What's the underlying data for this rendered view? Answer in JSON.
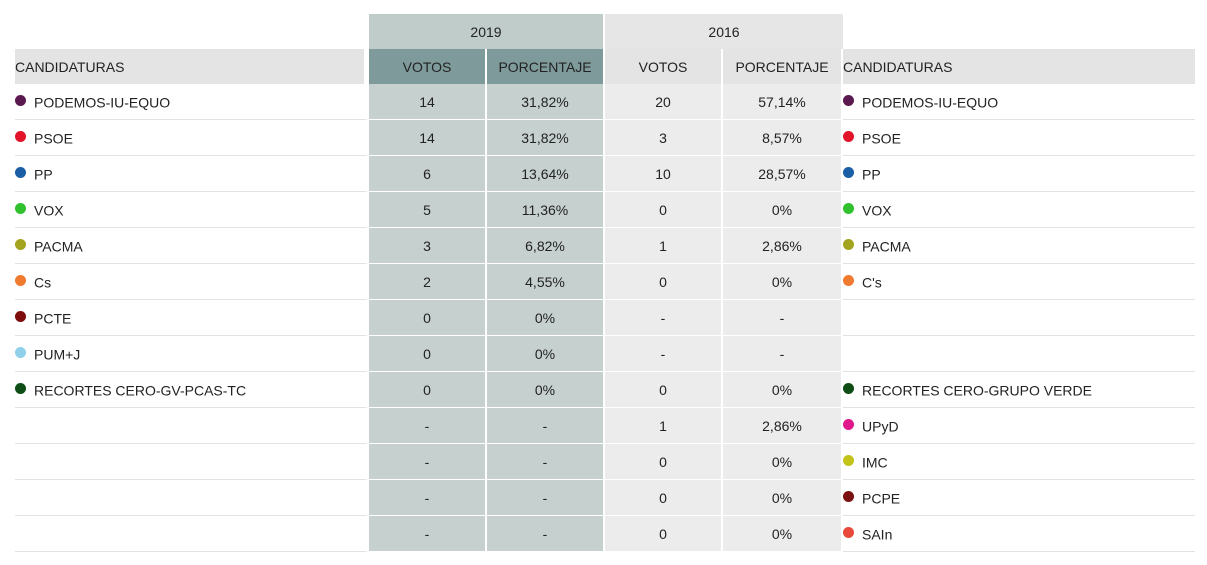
{
  "years": {
    "y2019": "2019",
    "y2016": "2016"
  },
  "headers": {
    "candidaturas": "CANDIDATURAS",
    "votos": "VOTOS",
    "porcentaje": "PORCENTAJE"
  },
  "rows": [
    {
      "left": {
        "name": "PODEMOS-IU-EQUO",
        "color": "#5b1a4f"
      },
      "v2019": {
        "votos": "14",
        "pct": "31,82%"
      },
      "v2016": {
        "votos": "20",
        "pct": "57,14%"
      },
      "right": {
        "name": "PODEMOS-IU-EQUO",
        "color": "#5b1a4f"
      }
    },
    {
      "left": {
        "name": "PSOE",
        "color": "#e3132a"
      },
      "v2019": {
        "votos": "14",
        "pct": "31,82%"
      },
      "v2016": {
        "votos": "3",
        "pct": "8,57%"
      },
      "right": {
        "name": "PSOE",
        "color": "#e3132a"
      }
    },
    {
      "left": {
        "name": "PP",
        "color": "#1a5fa5"
      },
      "v2019": {
        "votos": "6",
        "pct": "13,64%"
      },
      "v2016": {
        "votos": "10",
        "pct": "28,57%"
      },
      "right": {
        "name": "PP",
        "color": "#1a5fa5"
      }
    },
    {
      "left": {
        "name": "VOX",
        "color": "#2fc12e"
      },
      "v2019": {
        "votos": "5",
        "pct": "11,36%"
      },
      "v2016": {
        "votos": "0",
        "pct": "0%"
      },
      "right": {
        "name": "VOX",
        "color": "#2fc12e"
      }
    },
    {
      "left": {
        "name": "PACMA",
        "color": "#a3a31f"
      },
      "v2019": {
        "votos": "3",
        "pct": "6,82%"
      },
      "v2016": {
        "votos": "1",
        "pct": "2,86%"
      },
      "right": {
        "name": "PACMA",
        "color": "#a3a31f"
      }
    },
    {
      "left": {
        "name": "Cs",
        "color": "#f07a30"
      },
      "v2019": {
        "votos": "2",
        "pct": "4,55%"
      },
      "v2016": {
        "votos": "0",
        "pct": "0%"
      },
      "right": {
        "name": "C's",
        "color": "#f07a30"
      }
    },
    {
      "left": {
        "name": "PCTE",
        "color": "#7f0c0c"
      },
      "v2019": {
        "votos": "0",
        "pct": "0%"
      },
      "v2016": {
        "votos": "-",
        "pct": "-"
      },
      "right": {
        "name": "",
        "color": ""
      }
    },
    {
      "left": {
        "name": "PUM+J",
        "color": "#8fd0ea"
      },
      "v2019": {
        "votos": "0",
        "pct": "0%"
      },
      "v2016": {
        "votos": "-",
        "pct": "-"
      },
      "right": {
        "name": "",
        "color": ""
      }
    },
    {
      "left": {
        "name": "RECORTES CERO-GV-PCAS-TC",
        "color": "#0e4d15"
      },
      "v2019": {
        "votos": "0",
        "pct": "0%"
      },
      "v2016": {
        "votos": "0",
        "pct": "0%"
      },
      "right": {
        "name": "RECORTES CERO-GRUPO VERDE",
        "color": "#0e4d15"
      }
    },
    {
      "left": {
        "name": "",
        "color": ""
      },
      "v2019": {
        "votos": "-",
        "pct": "-"
      },
      "v2016": {
        "votos": "1",
        "pct": "2,86%"
      },
      "right": {
        "name": "UPyD",
        "color": "#e0188c"
      }
    },
    {
      "left": {
        "name": "",
        "color": ""
      },
      "v2019": {
        "votos": "-",
        "pct": "-"
      },
      "v2016": {
        "votos": "0",
        "pct": "0%"
      },
      "right": {
        "name": "IMC",
        "color": "#c3c31a"
      }
    },
    {
      "left": {
        "name": "",
        "color": ""
      },
      "v2019": {
        "votos": "-",
        "pct": "-"
      },
      "v2016": {
        "votos": "0",
        "pct": "0%"
      },
      "right": {
        "name": "PCPE",
        "color": "#7a1010"
      }
    },
    {
      "left": {
        "name": "",
        "color": ""
      },
      "v2019": {
        "votos": "-",
        "pct": "-"
      },
      "v2016": {
        "votos": "0",
        "pct": "0%"
      },
      "right": {
        "name": "SAIn",
        "color": "#e8493a"
      }
    }
  ]
}
